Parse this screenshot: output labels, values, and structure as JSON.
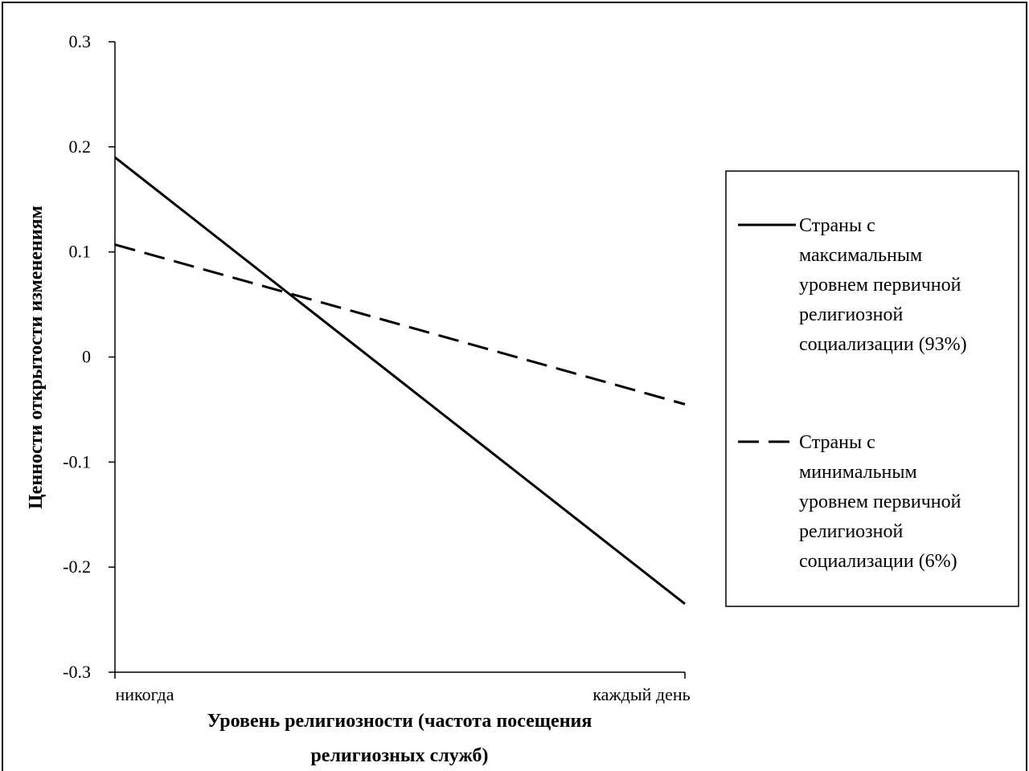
{
  "chart_data": {
    "type": "line",
    "categories": [
      "никогда",
      "каждый день"
    ],
    "series": [
      {
        "name": "Страны с максимальным уровнем первичной религиозной социализации (93%)",
        "values": [
          0.19,
          -0.235
        ],
        "style": "solid",
        "color": "#000000"
      },
      {
        "name": "Страны с минимальным уровнем первичной религиозной социализации (6%)",
        "values": [
          0.107,
          -0.045
        ],
        "style": "dashed",
        "color": "#000000"
      }
    ],
    "title": "",
    "xlabel": "Уровень религиозности (частота посещения религиозных служб)",
    "ylabel": "Ценности открытости изменениям",
    "ylim": [
      -0.3,
      0.3
    ],
    "yticks": [
      "-0.3",
      "-0.2",
      "-0.1",
      "0",
      "0.1",
      "0.2",
      "0.3"
    ],
    "legend_position": "right",
    "grid": false
  },
  "text": {
    "xlabel_line1": "Уровень религиозности (частота посещения",
    "xlabel_line2": "религиозных служб)",
    "legend_1": [
      "Страны с",
      "максимальным",
      "уровнем первичной",
      "религиозной",
      "социализации (93%)"
    ],
    "legend_2": [
      "Страны с",
      "минимальным",
      "уровнем первичной",
      "религиозной",
      "социализации (6%)"
    ]
  }
}
